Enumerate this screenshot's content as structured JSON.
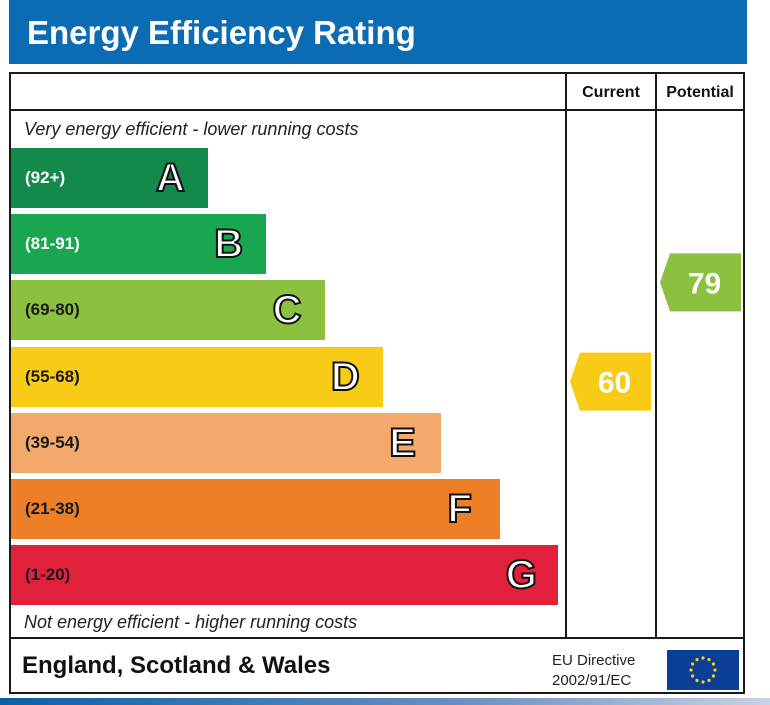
{
  "header": {
    "title": "Energy Efficiency Rating"
  },
  "columns": {
    "current": "Current",
    "potential": "Potential"
  },
  "captions": {
    "top": "Very energy efficient - lower running costs",
    "bottom": "Not energy efficient - higher running costs"
  },
  "chart_data": {
    "type": "bar",
    "title": "Energy Efficiency Rating",
    "bands": [
      {
        "letter": "A",
        "range": "(92+)",
        "color": "#138a4c",
        "text_color": "#ffffff",
        "min": 92,
        "max": 100
      },
      {
        "letter": "B",
        "range": "(81-91)",
        "color": "#1aa550",
        "text_color": "#ffffff",
        "min": 81,
        "max": 91
      },
      {
        "letter": "C",
        "range": "(69-80)",
        "color": "#8cc13f",
        "text_color": "#1a1a1a",
        "min": 69,
        "max": 80
      },
      {
        "letter": "D",
        "range": "(55-68)",
        "color": "#f8cc16",
        "text_color": "#1a1a1a",
        "min": 55,
        "max": 68
      },
      {
        "letter": "E",
        "range": "(39-54)",
        "color": "#f3a96b",
        "text_color": "#1a1a1a",
        "min": 39,
        "max": 54
      },
      {
        "letter": "F",
        "range": "(21-38)",
        "color": "#ee7f26",
        "text_color": "#1a1a1a",
        "min": 21,
        "max": 38
      },
      {
        "letter": "G",
        "range": "(1-20)",
        "color": "#e2203b",
        "text_color": "#1a1a1a",
        "min": 1,
        "max": 20
      }
    ],
    "current": {
      "label": "Current",
      "value": "60",
      "band": "D",
      "color": "#f8cc16"
    },
    "potential": {
      "label": "Potential",
      "value": "79",
      "band": "C",
      "color": "#8cc13f"
    }
  },
  "footer": {
    "region": "England, Scotland & Wales",
    "directive_line1": "EU Directive",
    "directive_line2": "2002/91/EC"
  }
}
